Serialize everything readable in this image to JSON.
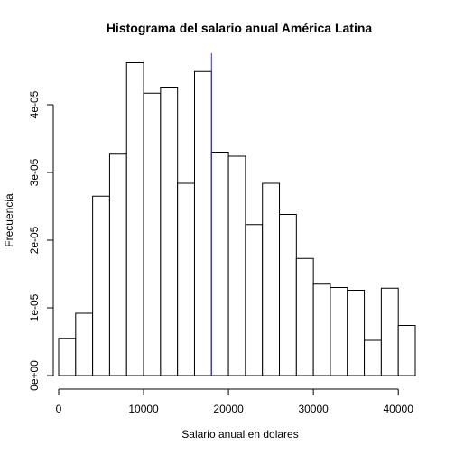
{
  "chart_data": {
    "type": "bar",
    "title": "Histograma del salario anual América Latina",
    "xlabel": "Salario anual en dolares",
    "ylabel": "Frecuencia",
    "bin_edges": [
      0,
      2000,
      4000,
      6000,
      8000,
      10000,
      12000,
      14000,
      16000,
      18000,
      20000,
      22000,
      24000,
      26000,
      28000,
      30000,
      32000,
      34000,
      36000,
      38000,
      40000,
      42000
    ],
    "values": [
      5.5e-06,
      9.2e-06,
      2.65e-05,
      3.27e-05,
      4.62e-05,
      4.17e-05,
      4.26e-05,
      2.84e-05,
      4.49e-05,
      3.3e-05,
      3.24e-05,
      2.23e-05,
      2.84e-05,
      2.38e-05,
      1.73e-05,
      1.35e-05,
      1.3e-05,
      1.26e-05,
      5.2e-06,
      1.29e-05,
      7.4e-06
    ],
    "vline": {
      "x": 18000,
      "color": "#3333aa"
    },
    "xlim": [
      0,
      42000
    ],
    "ylim": [
      0,
      4.76e-05
    ],
    "x_ticks": [
      {
        "value": 0,
        "label": "0"
      },
      {
        "value": 10000,
        "label": "10000"
      },
      {
        "value": 20000,
        "label": "20000"
      },
      {
        "value": 30000,
        "label": "30000"
      },
      {
        "value": 40000,
        "label": "40000"
      }
    ],
    "y_ticks": [
      {
        "value": 0,
        "label": "0e+00"
      },
      {
        "value": 1e-05,
        "label": "1e-05"
      },
      {
        "value": 2e-05,
        "label": "2e-05"
      },
      {
        "value": 3e-05,
        "label": "3e-05"
      },
      {
        "value": 4e-05,
        "label": "4e-05"
      }
    ],
    "grid": false,
    "legend": "none"
  }
}
